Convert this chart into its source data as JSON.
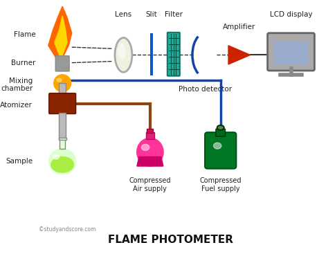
{
  "title": "FLAME PHOTOMETER",
  "subtitle": "©studyandscore.com",
  "bg_color": "#ffffff",
  "labels": {
    "flame": "Flame",
    "burner": "Burner",
    "mixing_chamber": "Mixing\nchamber",
    "atomizer": "Atomizer",
    "sample": "Sample",
    "lens": "Lens",
    "slit": "Slit",
    "filter": "Filter",
    "photo_detector": "Photo detector",
    "amplifier": "Amplifier",
    "lcd_display": "LCD display",
    "compressed_air": "Compressed\nAir supply",
    "compressed_fuel": "Compressed\nFuel supply"
  },
  "colors": {
    "flame_orange": "#FF6600",
    "flame_yellow": "#FFD700",
    "burner_gray": "#999999",
    "mixing_orange": "#FFA500",
    "atomizer_brown": "#8B2500",
    "tube_gray": "#BBBBBB",
    "lens_white": "#F0F0E0",
    "slit_blue": "#1155CC",
    "filter_teal": "#009988",
    "photo_detector_blue": "#1144AA",
    "amplifier_red": "#CC2200",
    "lcd_screen": "#99AACC",
    "lcd_body": "#AAAAAA",
    "air_supply_pink": "#FF3399",
    "fuel_supply_green": "#007722",
    "pipe_brown": "#8B4513",
    "pipe_blue": "#1144AA",
    "dashed_line": "#333333",
    "label_color": "#222222"
  }
}
